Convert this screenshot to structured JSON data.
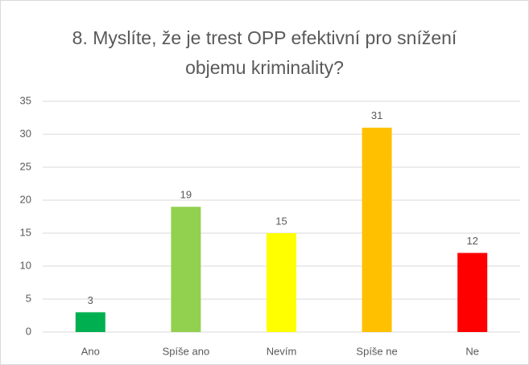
{
  "chart_data": {
    "type": "bar",
    "title": "8. Myslíte, že je trest OPP efektivní pro snížení objemu kriminality?",
    "categories": [
      "Ano",
      "Spíše ano",
      "Nevím",
      "Spíše ne",
      "Ne"
    ],
    "values": [
      3,
      19,
      15,
      31,
      12
    ],
    "colors": [
      "#00b050",
      "#92d050",
      "#ffff00",
      "#ffc000",
      "#ff0000"
    ],
    "ylim": [
      0,
      35
    ],
    "yticks": [
      0,
      5,
      10,
      15,
      20,
      25,
      30,
      35
    ],
    "grid": true,
    "data_labels": true
  }
}
